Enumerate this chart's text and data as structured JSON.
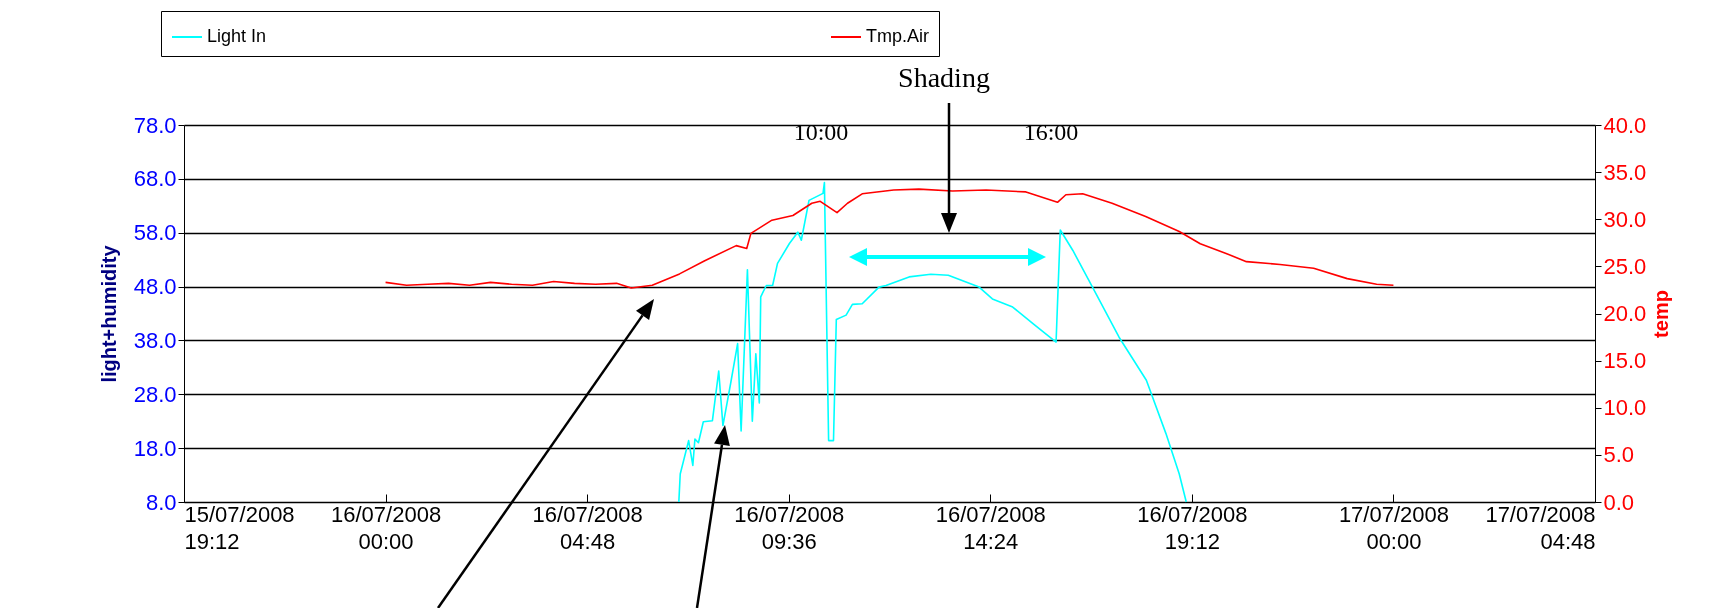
{
  "chart_data": {
    "type": "line",
    "ylabel": "light+humidity",
    "y2label": "temp",
    "annotations": [
      "Shading",
      "10:00",
      "16:00"
    ],
    "series": [
      {
        "name": "Light In",
        "color": "#00ffff",
        "x": [
          "2008-07-16T06:59",
          "2008-07-16T07:01",
          "2008-07-16T07:13",
          "2008-07-16T07:19",
          "2008-07-16T07:22",
          "2008-07-16T07:27",
          "2008-07-16T07:34",
          "2008-07-16T07:47",
          "2008-07-16T07:56",
          "2008-07-16T08:02",
          "2008-07-16T08:13",
          "2008-07-16T08:23",
          "2008-07-16T08:28",
          "2008-07-16T08:37",
          "2008-07-16T08:44",
          "2008-07-16T08:49",
          "2008-07-16T08:54",
          "2008-07-16T08:56",
          "2008-07-16T09:04",
          "2008-07-16T09:13",
          "2008-07-16T09:20",
          "2008-07-16T09:37",
          "2008-07-16T09:49",
          "2008-07-16T09:54",
          "2008-07-16T10:05",
          "2008-07-16T10:25",
          "2008-07-16T10:27",
          "2008-07-16T10:33",
          "2008-07-16T10:40",
          "2008-07-16T10:44",
          "2008-07-16T10:58",
          "2008-07-16T11:07",
          "2008-07-16T11:21",
          "2008-07-16T11:45",
          "2008-07-16T11:55",
          "2008-07-16T12:28",
          "2008-07-16T12:59",
          "2008-07-16T13:24",
          "2008-07-16T14:08",
          "2008-07-16T14:27",
          "2008-07-16T14:56",
          "2008-07-16T15:25",
          "2008-07-16T15:58",
          "2008-07-16T16:04",
          "2008-07-16T16:22",
          "2008-07-16T16:50",
          "2008-07-16T17:28",
          "2008-07-16T18:07",
          "2008-07-16T18:35",
          "2008-07-16T18:54",
          "2008-07-16T19:04"
        ],
        "values": [
          8.0,
          13.2,
          19.4,
          14.8,
          19.7,
          19.0,
          22.9,
          23.1,
          32.3,
          22.2,
          30.0,
          37.4,
          21.2,
          51.1,
          23.0,
          35.5,
          26.4,
          46.1,
          48.2,
          48.2,
          52.3,
          56.0,
          58.1,
          56.6,
          64.0,
          65.3,
          67.3,
          19.4,
          19.4,
          41.9,
          42.7,
          44.7,
          44.8,
          47.9,
          48.2,
          49.8,
          50.3,
          50.1,
          47.9,
          45.7,
          44.2,
          41.1,
          37.7,
          58.5,
          54.7,
          47.9,
          38.6,
          30.6,
          20.7,
          13.2,
          8.0
        ]
      },
      {
        "name": "Tmp.Air",
        "color": "#ff0000",
        "axis": "y2",
        "x": [
          "2008-07-16T00:00",
          "2008-07-16T00:30",
          "2008-07-16T01:00",
          "2008-07-16T01:30",
          "2008-07-16T02:00",
          "2008-07-16T02:30",
          "2008-07-16T03:00",
          "2008-07-16T03:30",
          "2008-07-16T04:00",
          "2008-07-16T04:30",
          "2008-07-16T05:00",
          "2008-07-16T05:30",
          "2008-07-16T05:51",
          "2008-07-16T06:21",
          "2008-07-16T07:00",
          "2008-07-16T07:36",
          "2008-07-16T08:21",
          "2008-07-16T08:36",
          "2008-07-16T08:42",
          "2008-07-16T09:12",
          "2008-07-16T09:42",
          "2008-07-16T10:09",
          "2008-07-16T10:21",
          "2008-07-16T10:45",
          "2008-07-16T11:00",
          "2008-07-16T11:21",
          "2008-07-16T12:06",
          "2008-07-16T12:42",
          "2008-07-16T13:30",
          "2008-07-16T14:18",
          "2008-07-16T15:15",
          "2008-07-16T16:00",
          "2008-07-16T16:12",
          "2008-07-16T16:36",
          "2008-07-16T17:18",
          "2008-07-16T18:06",
          "2008-07-16T18:54",
          "2008-07-16T19:24",
          "2008-07-16T20:00",
          "2008-07-16T20:30",
          "2008-07-16T21:18",
          "2008-07-16T22:06",
          "2008-07-16T22:54",
          "2008-07-16T23:36",
          "2008-07-17T00:00"
        ],
        "values": [
          23.3,
          23.0,
          23.1,
          23.2,
          23.0,
          23.3,
          23.1,
          23.0,
          23.4,
          23.2,
          23.1,
          23.2,
          22.7,
          23.0,
          24.2,
          25.6,
          27.2,
          26.9,
          28.5,
          29.9,
          30.4,
          31.7,
          31.9,
          30.7,
          31.7,
          32.7,
          33.1,
          33.2,
          33.0,
          33.1,
          32.9,
          31.8,
          32.6,
          32.7,
          31.7,
          30.3,
          28.7,
          27.4,
          26.4,
          25.5,
          25.2,
          24.8,
          23.7,
          23.1,
          23.0
        ]
      }
    ],
    "xlim": [
      "2008-07-15T19:12",
      "2008-07-17T04:48"
    ],
    "xticks": [
      {
        "value": "2008-07-15T19:12",
        "label": "15/07/2008 19:12"
      },
      {
        "value": "2008-07-16T00:00",
        "label": "16/07/2008 00:00"
      },
      {
        "value": "2008-07-16T04:48",
        "label": "16/07/2008 04:48"
      },
      {
        "value": "2008-07-16T09:36",
        "label": "16/07/2008 09:36"
      },
      {
        "value": "2008-07-16T14:24",
        "label": "16/07/2008 14:24"
      },
      {
        "value": "2008-07-16T19:12",
        "label": "16/07/2008 19:12"
      },
      {
        "value": "2008-07-17T00:00",
        "label": "17/07/2008 00:00"
      },
      {
        "value": "2008-07-17T04:48",
        "label": "17/07/2008 04:48"
      }
    ],
    "ylim": [
      8,
      78
    ],
    "yticks": [
      {
        "value": 8,
        "label": "8.0"
      },
      {
        "value": 18,
        "label": "18.0"
      },
      {
        "value": 28,
        "label": "28.0"
      },
      {
        "value": 38,
        "label": "38.0"
      },
      {
        "value": 48,
        "label": "48.0"
      },
      {
        "value": 58,
        "label": "58.0"
      },
      {
        "value": 68,
        "label": "68.0"
      },
      {
        "value": 78,
        "label": "78.0"
      }
    ],
    "y2lim": [
      0,
      40
    ],
    "y2ticks": [
      {
        "value": 0,
        "label": "0.0"
      },
      {
        "value": 5,
        "label": "5.0"
      },
      {
        "value": 10,
        "label": "10.0"
      },
      {
        "value": 15,
        "label": "15.0"
      },
      {
        "value": 20,
        "label": "20.0"
      },
      {
        "value": 25,
        "label": "25.0"
      },
      {
        "value": 30,
        "label": "30.0"
      },
      {
        "value": 35,
        "label": "35.0"
      },
      {
        "value": 40,
        "label": "40.0"
      }
    ],
    "grid": "y",
    "legend": "top",
    "marker": "none",
    "line_style": "solid"
  }
}
